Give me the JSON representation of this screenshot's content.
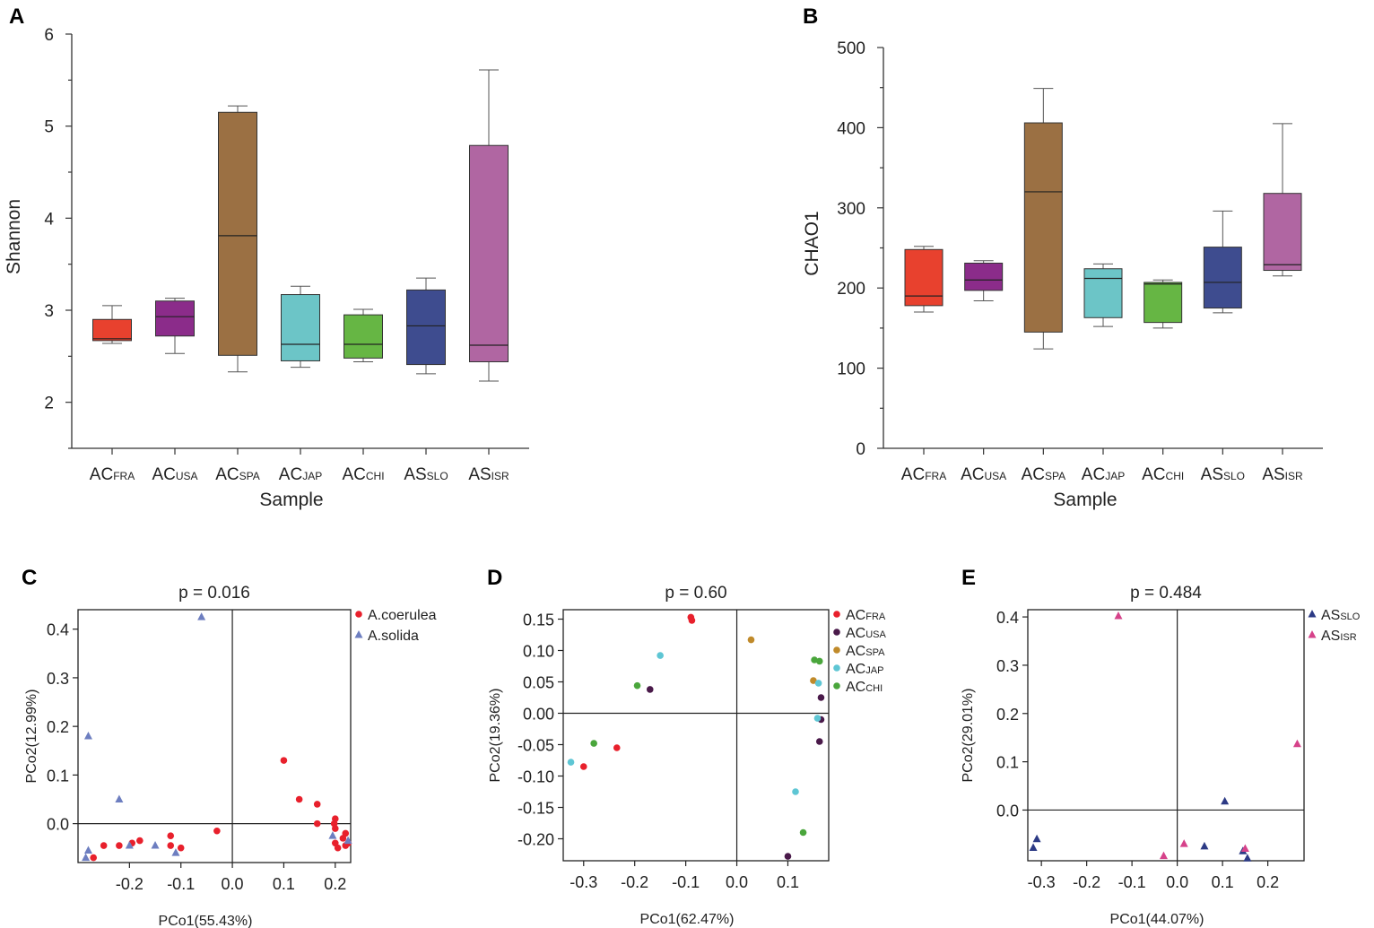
{
  "panels": {
    "A": "A",
    "B": "B",
    "C": "C",
    "D": "D",
    "E": "E"
  },
  "chart_data": [
    {
      "type": "box",
      "panel": "A",
      "ylabel": "Shannon",
      "xlabel": "Sample",
      "ylim": [
        1.5,
        6
      ],
      "yticks": [
        2,
        3,
        4,
        5,
        6
      ],
      "groups": [
        {
          "base": "AC",
          "sub": "FRA",
          "min": 2.64,
          "q1": 2.67,
          "median": 2.69,
          "q3": 2.9,
          "max": 3.05,
          "color": "#e8412e"
        },
        {
          "base": "AC",
          "sub": "USA",
          "min": 2.53,
          "q1": 2.72,
          "median": 2.93,
          "q3": 3.1,
          "max": 3.13,
          "color": "#8b2c8a"
        },
        {
          "base": "AC",
          "sub": "SPA",
          "min": 2.33,
          "q1": 2.51,
          "median": 3.81,
          "q3": 5.15,
          "max": 5.22,
          "color": "#9b7043"
        },
        {
          "base": "AC",
          "sub": "JAP",
          "min": 2.38,
          "q1": 2.45,
          "median": 2.63,
          "q3": 3.17,
          "max": 3.26,
          "color": "#6cc5c7"
        },
        {
          "base": "AC",
          "sub": "CHI",
          "min": 2.44,
          "q1": 2.48,
          "median": 2.63,
          "q3": 2.95,
          "max": 3.01,
          "color": "#66b644"
        },
        {
          "base": "AS",
          "sub": "SLO",
          "min": 2.31,
          "q1": 2.41,
          "median": 2.83,
          "q3": 3.22,
          "max": 3.35,
          "color": "#3e4c8f"
        },
        {
          "base": "AS",
          "sub": "ISR",
          "min": 2.23,
          "q1": 2.44,
          "median": 2.62,
          "q3": 4.79,
          "max": 5.61,
          "color": "#b066a2"
        }
      ]
    },
    {
      "type": "box",
      "panel": "B",
      "ylabel": "CHAO1",
      "xlabel": "Sample",
      "ylim": [
        0,
        500
      ],
      "yticks": [
        0,
        100,
        200,
        300,
        400,
        500
      ],
      "groups": [
        {
          "base": "AC",
          "sub": "FRA",
          "min": 170,
          "q1": 178,
          "median": 190,
          "q3": 248,
          "max": 252,
          "color": "#e8412e"
        },
        {
          "base": "AC",
          "sub": "USA",
          "min": 184,
          "q1": 197,
          "median": 210,
          "q3": 231,
          "max": 234,
          "color": "#8b2c8a"
        },
        {
          "base": "AC",
          "sub": "SPA",
          "min": 124,
          "q1": 145,
          "median": 320,
          "q3": 406,
          "max": 449,
          "color": "#9b7043"
        },
        {
          "base": "AC",
          "sub": "JAP",
          "min": 152,
          "q1": 163,
          "median": 212,
          "q3": 224,
          "max": 230,
          "color": "#6cc5c7"
        },
        {
          "base": "AC",
          "sub": "CHI",
          "min": 150,
          "q1": 157,
          "median": 205,
          "q3": 207,
          "max": 210,
          "color": "#66b644"
        },
        {
          "base": "AS",
          "sub": "SLO",
          "min": 169,
          "q1": 175,
          "median": 207,
          "q3": 251,
          "max": 296,
          "color": "#3e4c8f"
        },
        {
          "base": "AS",
          "sub": "ISR",
          "min": 215,
          "q1": 222,
          "median": 229,
          "q3": 318,
          "max": 405,
          "color": "#b066a2"
        }
      ]
    },
    {
      "type": "scatter",
      "panel": "C",
      "title": "p = 0.016",
      "xlabel": "PCo1(55.43%)",
      "ylabel": "PCo2(12.99%)",
      "xlim": [
        -0.3,
        0.23
      ],
      "ylim": [
        -0.08,
        0.44
      ],
      "xticks": [
        -0.2,
        -0.1,
        0.0,
        0.1,
        0.2
      ],
      "xtick_labels": [
        "-0.2",
        "-0.1",
        "0.0",
        "0.1",
        "0.2"
      ],
      "yticks": [
        0.0,
        0.1,
        0.2,
        0.3,
        0.4
      ],
      "ytick_labels": [
        "0.0",
        "0.1",
        "0.2",
        "0.3",
        "0.4"
      ],
      "series": [
        {
          "name": "A.coerulea",
          "marker": "circle",
          "color": "#e8202c",
          "points": [
            [
              0.1,
              0.13
            ],
            [
              0.13,
              0.05
            ],
            [
              0.165,
              0.04
            ],
            [
              0.165,
              0.0
            ],
            [
              0.2,
              0.01
            ],
            [
              0.198,
              0.0
            ],
            [
              0.2,
              -0.01
            ],
            [
              0.22,
              -0.02
            ],
            [
              0.215,
              -0.03
            ],
            [
              0.225,
              -0.04
            ],
            [
              0.2,
              -0.04
            ],
            [
              0.205,
              -0.05
            ],
            [
              0.22,
              -0.045
            ],
            [
              -0.03,
              -0.015
            ],
            [
              -0.1,
              -0.05
            ],
            [
              -0.12,
              -0.045
            ],
            [
              -0.12,
              -0.025
            ],
            [
              -0.18,
              -0.035
            ],
            [
              -0.195,
              -0.04
            ],
            [
              -0.22,
              -0.045
            ],
            [
              -0.25,
              -0.045
            ],
            [
              -0.27,
              -0.07
            ]
          ]
        },
        {
          "name": "A.solida",
          "marker": "triangle",
          "color": "#6d7ec0",
          "points": [
            [
              -0.06,
              0.425
            ],
            [
              -0.28,
              0.18
            ],
            [
              -0.22,
              0.05
            ],
            [
              -0.2,
              -0.045
            ],
            [
              -0.15,
              -0.045
            ],
            [
              -0.11,
              -0.06
            ],
            [
              -0.28,
              -0.055
            ],
            [
              -0.285,
              -0.07
            ],
            [
              0.225,
              -0.035
            ],
            [
              0.195,
              -0.025
            ]
          ]
        }
      ],
      "legend_position": "top-right"
    },
    {
      "type": "scatter",
      "panel": "D",
      "title": "p = 0.60",
      "xlabel": "PCo1(62.47%)",
      "ylabel": "PCo2(19.36%)",
      "xlim": [
        -0.34,
        0.18
      ],
      "ylim": [
        -0.235,
        0.165
      ],
      "xticks": [
        -0.3,
        -0.2,
        -0.1,
        0.0,
        0.1
      ],
      "xtick_labels": [
        "-0.3",
        "-0.2",
        "-0.1",
        "0.0",
        "0.1"
      ],
      "yticks": [
        0.15,
        0.1,
        0.05,
        0.0,
        -0.05,
        -0.1,
        -0.15,
        -0.2
      ],
      "ytick_labels": [
        "0.15",
        "0.10",
        "0.05",
        "0.00",
        "-0.05",
        "-0.10",
        "-0.15",
        "-0.20"
      ],
      "series": [
        {
          "name": "ACFRA",
          "base": "AC",
          "sub": "FRA",
          "marker": "circle",
          "color": "#e8202c",
          "points": [
            [
              -0.09,
              0.153
            ],
            [
              -0.088,
              0.148
            ],
            [
              -0.235,
              -0.055
            ],
            [
              -0.3,
              -0.085
            ]
          ]
        },
        {
          "name": "ACUSA",
          "base": "AC",
          "sub": "USA",
          "marker": "circle",
          "color": "#4a1a4a",
          "points": [
            [
              -0.17,
              0.038
            ],
            [
              0.165,
              0.025
            ],
            [
              0.165,
              -0.01
            ],
            [
              0.162,
              -0.045
            ],
            [
              0.1,
              -0.228
            ]
          ]
        },
        {
          "name": "ACSPA",
          "base": "AC",
          "sub": "SPA",
          "marker": "circle",
          "color": "#c08a2a",
          "points": [
            [
              0.028,
              0.117
            ],
            [
              0.15,
              0.052
            ]
          ]
        },
        {
          "name": "ACJAP",
          "base": "AC",
          "sub": "JAP",
          "marker": "circle",
          "color": "#5ec6d4",
          "points": [
            [
              -0.15,
              0.092
            ],
            [
              0.16,
              0.048
            ],
            [
              0.158,
              -0.008
            ],
            [
              0.115,
              -0.125
            ],
            [
              -0.325,
              -0.078
            ]
          ]
        },
        {
          "name": "ACCHI",
          "base": "AC",
          "sub": "CHI",
          "marker": "circle",
          "color": "#4aa63c",
          "points": [
            [
              0.152,
              0.085
            ],
            [
              0.162,
              0.083
            ],
            [
              -0.195,
              0.044
            ],
            [
              -0.28,
              -0.048
            ],
            [
              0.13,
              -0.19
            ]
          ]
        }
      ],
      "legend_position": "top-right"
    },
    {
      "type": "scatter",
      "panel": "E",
      "title": "p = 0.484",
      "xlabel": "PCo1(44.07%)",
      "ylabel": "PCo2(29.01%)",
      "xlim": [
        -0.33,
        0.28
      ],
      "ylim": [
        -0.105,
        0.415
      ],
      "xticks": [
        -0.3,
        -0.2,
        -0.1,
        0.0,
        0.1,
        0.2
      ],
      "xtick_labels": [
        "-0.3",
        "-0.2",
        "-0.1",
        "0.0",
        "0.1",
        "0.2"
      ],
      "yticks": [
        0.0,
        0.1,
        0.2,
        0.3,
        0.4
      ],
      "ytick_labels": [
        "0.0",
        "0.1",
        "0.2",
        "0.3",
        "0.4"
      ],
      "series": [
        {
          "name": "ASSLO",
          "base": "AS",
          "sub": "SLO",
          "marker": "triangle",
          "color": "#2c3a85",
          "points": [
            [
              0.105,
              0.018
            ],
            [
              -0.31,
              -0.06
            ],
            [
              -0.318,
              -0.078
            ],
            [
              0.06,
              -0.075
            ],
            [
              0.145,
              -0.085
            ],
            [
              0.155,
              -0.1
            ]
          ]
        },
        {
          "name": "ASISR",
          "base": "AS",
          "sub": "ISR",
          "marker": "triangle",
          "color": "#d6428a",
          "points": [
            [
              -0.13,
              0.402
            ],
            [
              0.265,
              0.137
            ],
            [
              0.015,
              -0.07
            ],
            [
              -0.03,
              -0.095
            ],
            [
              0.15,
              -0.08
            ]
          ]
        }
      ],
      "legend_position": "top-right"
    }
  ]
}
